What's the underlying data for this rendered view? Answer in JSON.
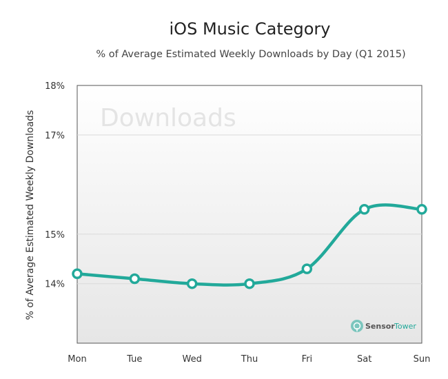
{
  "chart_data": {
    "type": "line",
    "title": "iOS Music Category",
    "subtitle": "% of Average Estimated Weekly Downloads by Day (Q1 2015)",
    "xlabel": "",
    "ylabel": "% of Average Estimated Weekly Downloads",
    "categories": [
      "Mon",
      "Tue",
      "Wed",
      "Thu",
      "Fri",
      "Sat",
      "Sun"
    ],
    "values": [
      14.2,
      14.1,
      14.0,
      14.0,
      14.3,
      15.5,
      15.5
    ],
    "y_tick_labels": [
      "18%",
      "17%",
      "15%",
      "14%"
    ],
    "y_tick_values": [
      18,
      17,
      15,
      14
    ],
    "ylim": [
      12.8,
      18
    ],
    "grid": true,
    "legend": "none",
    "watermark": "Downloads",
    "color": "#22a99a"
  },
  "branding": {
    "sensor": "Sensor",
    "tower": "Tower"
  }
}
